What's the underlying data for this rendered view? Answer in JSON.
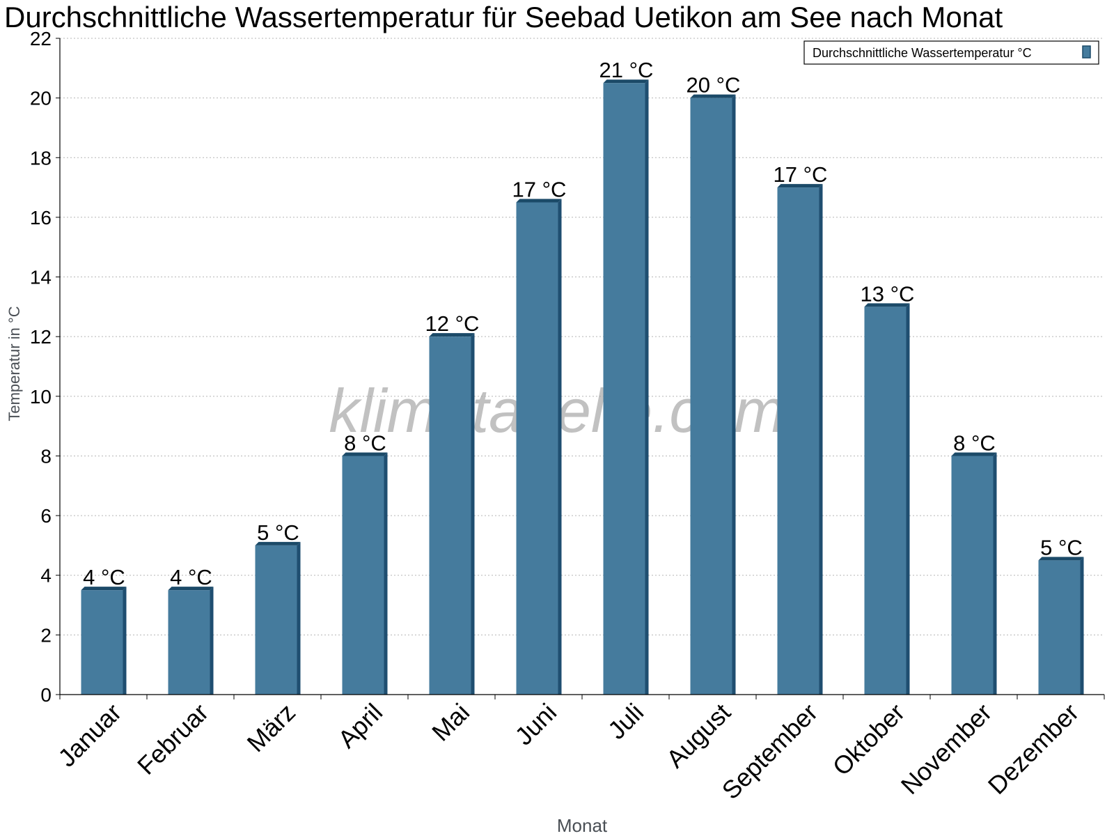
{
  "chart_data": {
    "type": "bar",
    "title": "Durchschnittliche Wassertemperatur für Seebad Uetikon am See nach Monat",
    "xlabel": "Monat",
    "ylabel": "Temperatur in °C",
    "watermark": "klimatabelle.com",
    "ylim": [
      0,
      22
    ],
    "yticks": [
      0,
      2,
      4,
      6,
      8,
      10,
      12,
      14,
      16,
      18,
      20,
      22
    ],
    "grid": true,
    "legend_position": "top-right",
    "categories": [
      "Januar",
      "Februar",
      "März",
      "April",
      "Mai",
      "Juni",
      "Juli",
      "August",
      "September",
      "Oktober",
      "November",
      "Dezember"
    ],
    "series": [
      {
        "name": "Durchschnittliche Wassertemperatur °C",
        "color": "#457b9d",
        "values": [
          3.5,
          3.5,
          5,
          8,
          12,
          16.5,
          20.5,
          20,
          17,
          13,
          8,
          4.5
        ],
        "labels": [
          "4 °C",
          "4 °C",
          "5 °C",
          "8 °C",
          "12 °C",
          "17 °C",
          "21 °C",
          "20 °C",
          "17 °C",
          "13 °C",
          "8 °C",
          "5 °C"
        ]
      }
    ]
  }
}
